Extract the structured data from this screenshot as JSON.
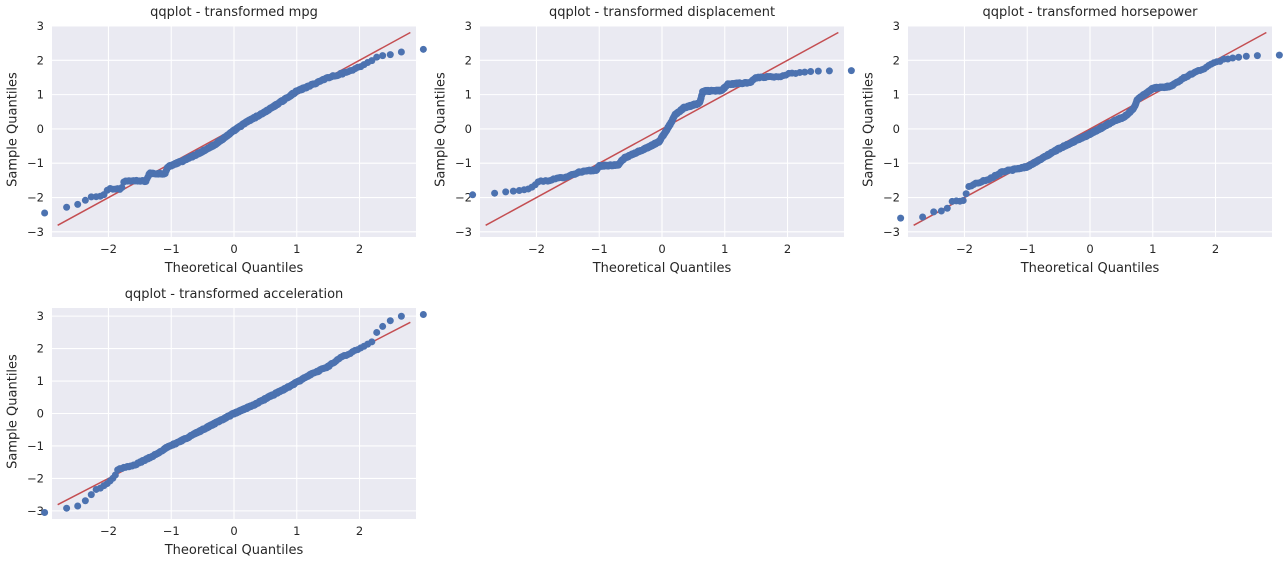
{
  "chart_data": [
    {
      "type": "scatter",
      "title": "qqplot - transformed mpg",
      "xlabel": "Theoretical Quantiles",
      "ylabel": "Sample Quantiles",
      "xlim": [
        -2.9,
        2.9
      ],
      "ylim": [
        -3.15,
        3.0
      ],
      "xticks": [
        -2,
        -1,
        0,
        1,
        2
      ],
      "yticks": [
        -3,
        -2,
        -1,
        0,
        1,
        2,
        3
      ],
      "xtick_labels": [
        "−2",
        "−1",
        "0",
        "1",
        "2"
      ],
      "ytick_labels": [
        "−3",
        "−2",
        "−1",
        "0",
        "1",
        "2",
        "3"
      ],
      "reference_line": {
        "x": [
          -2.81,
          2.81
        ],
        "y": [
          -2.81,
          2.81
        ],
        "color": "#c44e52"
      },
      "marker_color": "#4c72b0",
      "grid": true,
      "anchors": [
        [
          -2.8,
          -2.45
        ],
        [
          -2.6,
          -2.2
        ],
        [
          -2.45,
          -2.2
        ],
        [
          -2.3,
          -1.98
        ],
        [
          -2.1,
          -1.98
        ],
        [
          -2.0,
          -1.75
        ],
        [
          -1.8,
          -1.75
        ],
        [
          -1.75,
          -1.52
        ],
        [
          -1.4,
          -1.52
        ],
        [
          -1.35,
          -1.3
        ],
        [
          -1.1,
          -1.3
        ],
        [
          -1.05,
          -1.1
        ],
        [
          -0.8,
          -0.92
        ],
        [
          -0.55,
          -0.7
        ],
        [
          -0.3,
          -0.45
        ],
        [
          0,
          -0.05
        ],
        [
          0.2,
          0.2
        ],
        [
          0.5,
          0.5
        ],
        [
          0.8,
          0.85
        ],
        [
          1.0,
          1.1
        ],
        [
          1.2,
          1.25
        ],
        [
          1.5,
          1.5
        ],
        [
          1.7,
          1.6
        ],
        [
          1.9,
          1.72
        ],
        [
          2.1,
          1.9
        ],
        [
          2.3,
          2.12
        ],
        [
          2.55,
          2.18
        ],
        [
          2.81,
          2.32
        ]
      ]
    },
    {
      "type": "scatter",
      "title": "qqplot - transformed displacement",
      "xlabel": "Theoretical Quantiles",
      "ylabel": "Sample Quantiles",
      "xlim": [
        -2.9,
        2.9
      ],
      "ylim": [
        -3.15,
        3.0
      ],
      "xticks": [
        -2,
        -1,
        0,
        1,
        2
      ],
      "yticks": [
        -3,
        -2,
        -1,
        0,
        1,
        2,
        3
      ],
      "xtick_labels": [
        "−2",
        "−1",
        "0",
        "1",
        "2"
      ],
      "ytick_labels": [
        "−3",
        "−2",
        "−1",
        "0",
        "1",
        "2",
        "3"
      ],
      "reference_line": {
        "x": [
          -2.81,
          2.81
        ],
        "y": [
          -2.81,
          2.81
        ],
        "color": "#c44e52"
      },
      "marker_color": "#4c72b0",
      "grid": true,
      "anchors": [
        [
          -2.8,
          -1.92
        ],
        [
          -2.6,
          -1.85
        ],
        [
          -2.4,
          -1.82
        ],
        [
          -2.2,
          -1.78
        ],
        [
          -2.05,
          -1.7
        ],
        [
          -2.0,
          -1.55
        ],
        [
          -1.8,
          -1.5
        ],
        [
          -1.5,
          -1.38
        ],
        [
          -1.3,
          -1.25
        ],
        [
          -1.05,
          -1.2
        ],
        [
          -1.0,
          -1.08
        ],
        [
          -0.7,
          -1.05
        ],
        [
          -0.6,
          -0.85
        ],
        [
          -0.3,
          -0.6
        ],
        [
          -0.05,
          -0.38
        ],
        [
          0.05,
          -0.1
        ],
        [
          0.15,
          0.2
        ],
        [
          0.2,
          0.4
        ],
        [
          0.35,
          0.62
        ],
        [
          0.6,
          0.75
        ],
        [
          0.65,
          1.1
        ],
        [
          0.95,
          1.12
        ],
        [
          1.05,
          1.3
        ],
        [
          1.4,
          1.35
        ],
        [
          1.5,
          1.5
        ],
        [
          1.9,
          1.52
        ],
        [
          2.0,
          1.6
        ],
        [
          2.4,
          1.68
        ],
        [
          2.81,
          1.7
        ]
      ]
    },
    {
      "type": "scatter",
      "title": "qqplot - transformed horsepower",
      "xlabel": "Theoretical Quantiles",
      "ylabel": "Sample Quantiles",
      "xlim": [
        -2.9,
        2.9
      ],
      "ylim": [
        -3.15,
        3.0
      ],
      "xticks": [
        -2,
        -1,
        0,
        1,
        2
      ],
      "yticks": [
        -3,
        -2,
        -1,
        0,
        1,
        2,
        3
      ],
      "xtick_labels": [
        "−2",
        "−1",
        "0",
        "1",
        "2"
      ],
      "ytick_labels": [
        "−3",
        "−2",
        "−1",
        "0",
        "1",
        "2",
        "3"
      ],
      "reference_line": {
        "x": [
          -2.81,
          2.81
        ],
        "y": [
          -2.81,
          2.81
        ],
        "color": "#c44e52"
      },
      "marker_color": "#4c72b0",
      "grid": true,
      "anchors": [
        [
          -2.8,
          -2.6
        ],
        [
          -2.6,
          -2.55
        ],
        [
          -2.5,
          -2.42
        ],
        [
          -2.3,
          -2.38
        ],
        [
          -2.2,
          -2.12
        ],
        [
          -2.0,
          -2.08
        ],
        [
          -1.95,
          -1.7
        ],
        [
          -1.8,
          -1.58
        ],
        [
          -1.6,
          -1.45
        ],
        [
          -1.4,
          -1.25
        ],
        [
          -1.2,
          -1.18
        ],
        [
          -1.0,
          -1.1
        ],
        [
          -0.8,
          -0.9
        ],
        [
          -0.5,
          -0.58
        ],
        [
          -0.2,
          -0.32
        ],
        [
          0.0,
          -0.15
        ],
        [
          0.2,
          0.05
        ],
        [
          0.4,
          0.25
        ],
        [
          0.55,
          0.35
        ],
        [
          0.7,
          0.6
        ],
        [
          0.75,
          0.85
        ],
        [
          0.9,
          1.05
        ],
        [
          1.0,
          1.18
        ],
        [
          1.3,
          1.25
        ],
        [
          1.5,
          1.5
        ],
        [
          1.8,
          1.75
        ],
        [
          2.0,
          1.95
        ],
        [
          2.2,
          2.05
        ],
        [
          2.5,
          2.12
        ],
        [
          2.81,
          2.15
        ]
      ]
    },
    {
      "type": "scatter",
      "title": "qqplot - transformed acceleration",
      "xlabel": "Theoretical Quantiles",
      "ylabel": "Sample Quantiles",
      "xlim": [
        -2.9,
        2.9
      ],
      "ylim": [
        -3.25,
        3.25
      ],
      "xticks": [
        -2,
        -1,
        0,
        1,
        2
      ],
      "yticks": [
        -3,
        -2,
        -1,
        0,
        1,
        2,
        3
      ],
      "xtick_labels": [
        "−2",
        "−1",
        "0",
        "1",
        "2"
      ],
      "ytick_labels": [
        "−3",
        "−2",
        "−1",
        "0",
        "1",
        "2",
        "3"
      ],
      "reference_line": {
        "x": [
          -2.81,
          2.81
        ],
        "y": [
          -2.81,
          2.81
        ],
        "color": "#c44e52"
      },
      "marker_color": "#4c72b0",
      "grid": true,
      "anchors": [
        [
          -2.8,
          -3.05
        ],
        [
          -2.6,
          -2.85
        ],
        [
          -2.45,
          -2.85
        ],
        [
          -2.3,
          -2.55
        ],
        [
          -2.2,
          -2.35
        ],
        [
          -2.0,
          -2.15
        ],
        [
          -1.9,
          -1.92
        ],
        [
          -1.85,
          -1.72
        ],
        [
          -1.6,
          -1.6
        ],
        [
          -1.3,
          -1.32
        ],
        [
          -1.1,
          -1.08
        ],
        [
          -0.8,
          -0.8
        ],
        [
          -0.5,
          -0.5
        ],
        [
          -0.2,
          -0.2
        ],
        [
          0.0,
          0.0
        ],
        [
          0.3,
          0.25
        ],
        [
          0.6,
          0.55
        ],
        [
          0.9,
          0.85
        ],
        [
          1.2,
          1.18
        ],
        [
          1.5,
          1.45
        ],
        [
          1.7,
          1.72
        ],
        [
          1.9,
          1.9
        ],
        [
          2.0,
          2.02
        ],
        [
          2.1,
          2.1
        ],
        [
          2.2,
          2.2
        ],
        [
          2.3,
          2.6
        ],
        [
          2.4,
          2.72
        ],
        [
          2.55,
          2.95
        ],
        [
          2.81,
          3.05
        ]
      ]
    }
  ]
}
